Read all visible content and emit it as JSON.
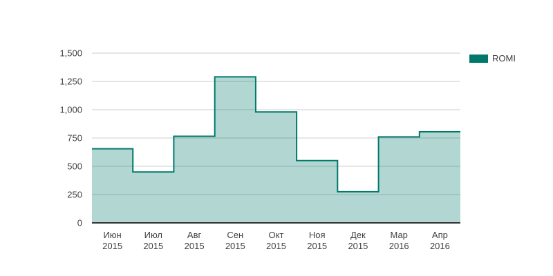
{
  "chart_data": {
    "type": "area",
    "variant": "stepped",
    "title": "",
    "xlabel": "",
    "ylabel": "",
    "legend_position": "right",
    "categories": [
      {
        "month": "Июн",
        "year": "2015"
      },
      {
        "month": "Июл",
        "year": "2015"
      },
      {
        "month": "Авг",
        "year": "2015"
      },
      {
        "month": "Сен",
        "year": "2015"
      },
      {
        "month": "Окт",
        "year": "2015"
      },
      {
        "month": "Ноя",
        "year": "2015"
      },
      {
        "month": "Дек",
        "year": "2015"
      },
      {
        "month": "Мар",
        "year": "2016"
      },
      {
        "month": "Апр",
        "year": "2016"
      }
    ],
    "series": [
      {
        "name": "ROMI",
        "values": [
          655,
          450,
          765,
          1290,
          980,
          550,
          275,
          760,
          805
        ]
      }
    ],
    "ylim": [
      0,
      1500
    ],
    "ytick_interval": 250,
    "ytick_labels": [
      "0",
      "250",
      "500",
      "750",
      "1,000",
      "1,250",
      "1,500"
    ],
    "grid": true,
    "colors": {
      "line": "#00796b",
      "fill_opacity": 0.3,
      "fill_rendered": "#b3d7d2",
      "gridline": "#cccccc",
      "baseline": "#333333",
      "axis_text": "#404040",
      "background": "#ffffff"
    }
  }
}
